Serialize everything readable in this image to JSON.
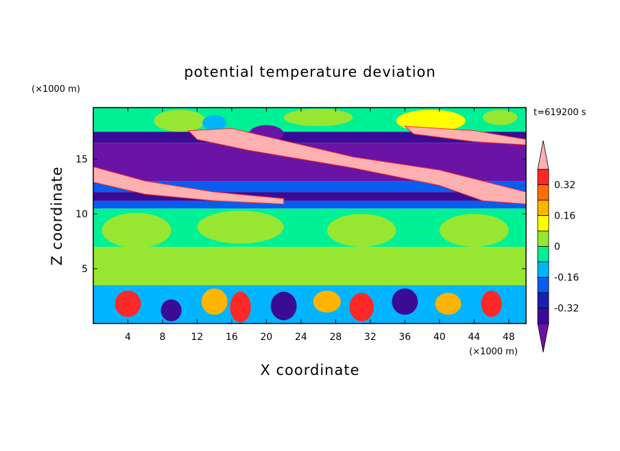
{
  "chart_data": {
    "type": "contour",
    "title": "potential temperature deviation",
    "x_label": "X coordinate",
    "y_label": "Z coordinate",
    "x_unit": "(×1000 m)",
    "y_unit": "(×1000 m)",
    "time_label": "t=619200 s",
    "xlim": [
      0,
      50
    ],
    "ylim": [
      0,
      19.7
    ],
    "xticks": [
      4,
      8,
      12,
      16,
      20,
      24,
      28,
      32,
      36,
      40,
      44,
      48
    ],
    "yticks": [
      5,
      10,
      15
    ],
    "colorbar": {
      "levels": [
        -0.4,
        -0.32,
        -0.24,
        -0.16,
        -0.08,
        0,
        0.08,
        0.16,
        0.24,
        0.32,
        0.4
      ],
      "colors": [
        "#6a14a6",
        "#3a0c96",
        "#1a1eb0",
        "#0a5cf0",
        "#00b4ff",
        "#00f096",
        "#96e632",
        "#ffff00",
        "#ffb400",
        "#ff6e00",
        "#ff2828",
        "#ffb0b0"
      ],
      "ticks": [
        -0.32,
        -0.16,
        0,
        0.16,
        0.32
      ]
    },
    "layers": [
      {
        "z": [
          0,
          3.5
        ],
        "value": -0.12
      },
      {
        "z": [
          3.5,
          7
        ],
        "value": 0.04
      },
      {
        "z": [
          7,
          10.5
        ],
        "value": -0.04
      },
      {
        "z": [
          10.5,
          11.2
        ],
        "value": -0.2
      },
      {
        "z": [
          11.2,
          12
        ],
        "value": -0.36
      },
      {
        "z": [
          12,
          13
        ],
        "value": -0.2
      },
      {
        "z": [
          13,
          16.5
        ],
        "value": -0.45
      },
      {
        "z": [
          16.5,
          17.5
        ],
        "value": -0.36
      },
      {
        "z": [
          17.5,
          19.7
        ],
        "value": -0.04
      }
    ],
    "blobs": [
      {
        "c": [
          5,
          8.5
        ],
        "r": [
          4,
          1.6
        ],
        "value": 0.04
      },
      {
        "c": [
          17,
          8.8
        ],
        "r": [
          5,
          1.5
        ],
        "value": 0.04
      },
      {
        "c": [
          31,
          8.5
        ],
        "r": [
          4,
          1.5
        ],
        "value": 0.04
      },
      {
        "c": [
          44,
          8.5
        ],
        "r": [
          4,
          1.5
        ],
        "value": 0.04
      },
      {
        "c": [
          4,
          1.8
        ],
        "r": [
          1.5,
          1.2
        ],
        "value": 0.35
      },
      {
        "c": [
          9,
          1.2
        ],
        "r": [
          1.2,
          1.0
        ],
        "value": -0.35
      },
      {
        "c": [
          14,
          2
        ],
        "r": [
          1.5,
          1.2
        ],
        "value": 0.2
      },
      {
        "c": [
          17,
          1.5
        ],
        "r": [
          1.2,
          1.4
        ],
        "value": 0.35
      },
      {
        "c": [
          22,
          1.6
        ],
        "r": [
          1.5,
          1.3
        ],
        "value": -0.35
      },
      {
        "c": [
          27,
          2
        ],
        "r": [
          1.6,
          1.0
        ],
        "value": 0.2
      },
      {
        "c": [
          31,
          1.5
        ],
        "r": [
          1.4,
          1.3
        ],
        "value": 0.35
      },
      {
        "c": [
          36,
          2
        ],
        "r": [
          1.5,
          1.2
        ],
        "value": -0.35
      },
      {
        "c": [
          41,
          1.8
        ],
        "r": [
          1.5,
          1.0
        ],
        "value": 0.2
      },
      {
        "c": [
          46,
          1.8
        ],
        "r": [
          1.2,
          1.2
        ],
        "value": 0.35
      },
      {
        "c": [
          10,
          18.5
        ],
        "r": [
          3,
          1.0
        ],
        "value": 0.04
      },
      {
        "c": [
          14,
          18.3
        ],
        "r": [
          1.4,
          0.7
        ],
        "value": -0.12
      },
      {
        "c": [
          20,
          17.3
        ],
        "r": [
          2,
          0.8
        ],
        "value": -0.45
      },
      {
        "c": [
          26,
          18.8
        ],
        "r": [
          4,
          0.8
        ],
        "value": 0.04
      },
      {
        "c": [
          39,
          18.5
        ],
        "r": [
          4,
          1.0
        ],
        "value": 0.12
      },
      {
        "c": [
          47,
          18.8
        ],
        "r": [
          2,
          0.7
        ],
        "value": 0.04
      }
    ],
    "bands": [
      {
        "points": [
          [
            11,
            17.6
          ],
          [
            16,
            17.8
          ],
          [
            30,
            15.2
          ],
          [
            40,
            14
          ],
          [
            50,
            12
          ],
          [
            50,
            10.9
          ],
          [
            45,
            11.2
          ],
          [
            40,
            12.6
          ],
          [
            30,
            14.2
          ],
          [
            18,
            15.8
          ],
          [
            12,
            16.8
          ]
        ],
        "value": 0.45
      },
      {
        "points": [
          [
            0,
            14.3
          ],
          [
            6,
            13
          ],
          [
            14,
            12
          ],
          [
            22,
            11.4
          ],
          [
            22,
            10.9
          ],
          [
            14,
            11.2
          ],
          [
            6,
            11.8
          ],
          [
            0,
            12.9
          ]
        ],
        "value": 0.45
      },
      {
        "points": [
          [
            36,
            18
          ],
          [
            44,
            17.6
          ],
          [
            50,
            16.8
          ],
          [
            50,
            16.3
          ],
          [
            44,
            16.6
          ],
          [
            37,
            17.3
          ]
        ],
        "value": 0.45
      }
    ]
  }
}
